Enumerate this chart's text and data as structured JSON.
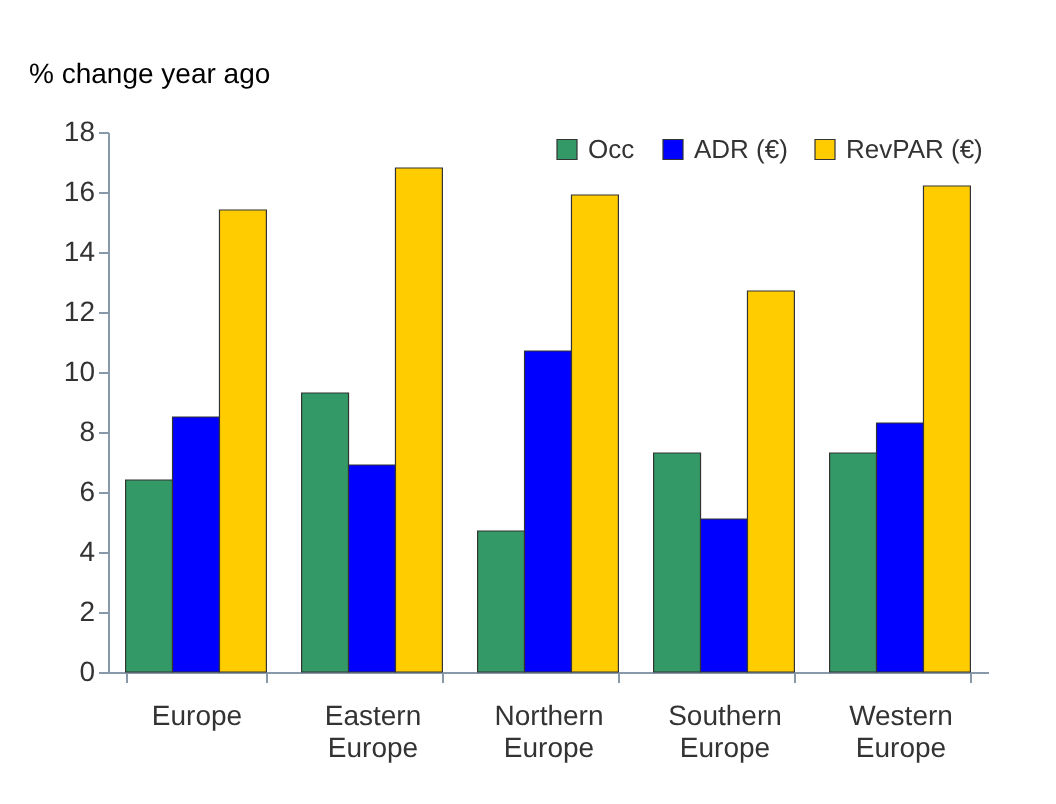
{
  "chart_data": {
    "type": "bar",
    "ylabel": "% change year ago",
    "categories": [
      "Europe",
      "Eastern Europe",
      "Northern Europe",
      "Southern Europe",
      "Western Europe"
    ],
    "series": [
      {
        "name": "Occ",
        "color": "#339966",
        "values": [
          6.4,
          9.3,
          4.7,
          7.3,
          7.3
        ]
      },
      {
        "name": "ADR (€)",
        "color": "#0000ff",
        "values": [
          8.5,
          6.9,
          10.7,
          5.1,
          8.3
        ]
      },
      {
        "name": "RevPAR (€)",
        "color": "#ffcc00",
        "values": [
          15.4,
          16.8,
          15.9,
          12.7,
          16.2
        ]
      }
    ],
    "ylim": [
      0,
      18
    ],
    "yticks": [
      0,
      2,
      4,
      6,
      8,
      10,
      12,
      14,
      16,
      18
    ],
    "grid": false,
    "legend": "top right"
  }
}
